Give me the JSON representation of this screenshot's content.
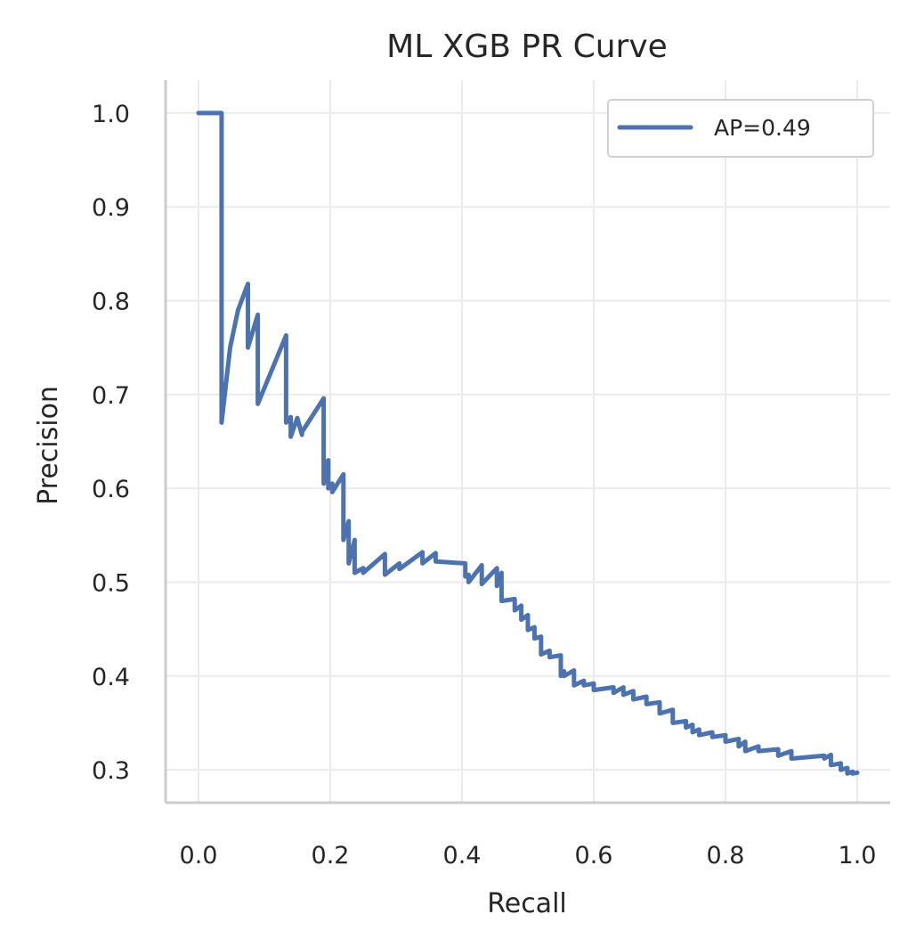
{
  "chart_data": {
    "type": "line",
    "title": "ML XGB PR Curve",
    "xlabel": "Recall",
    "ylabel": "Precision",
    "xlim": [
      -0.05,
      1.05
    ],
    "ylim": [
      0.265,
      1.035
    ],
    "xticks": [
      0.0,
      0.2,
      0.4,
      0.6,
      0.8,
      1.0
    ],
    "xtick_labels": [
      "0.0",
      "0.2",
      "0.4",
      "0.6",
      "0.8",
      "1.0"
    ],
    "yticks": [
      0.3,
      0.4,
      0.5,
      0.6,
      0.7,
      0.8,
      0.9,
      1.0
    ],
    "ytick_labels": [
      "0.3",
      "0.4",
      "0.5",
      "0.6",
      "0.7",
      "0.8",
      "0.9",
      "1.0"
    ],
    "grid": true,
    "legend_position": "top-right",
    "colors": {
      "series": "#4c72b0",
      "grid": "#ebebeb",
      "spine": "#cccccc",
      "text": "#262626"
    },
    "series": [
      {
        "name": "AP=0.49",
        "x": [
          0.0,
          0.035,
          0.035,
          0.048,
          0.06,
          0.075,
          0.075,
          0.09,
          0.09,
          0.133,
          0.133,
          0.14,
          0.14,
          0.15,
          0.157,
          0.157,
          0.19,
          0.19,
          0.197,
          0.197,
          0.203,
          0.203,
          0.22,
          0.22,
          0.228,
          0.228,
          0.237,
          0.237,
          0.25,
          0.25,
          0.283,
          0.283,
          0.305,
          0.305,
          0.34,
          0.34,
          0.36,
          0.36,
          0.405,
          0.405,
          0.41,
          0.41,
          0.43,
          0.43,
          0.453,
          0.453,
          0.46,
          0.46,
          0.48,
          0.48,
          0.49,
          0.49,
          0.5,
          0.5,
          0.51,
          0.51,
          0.52,
          0.52,
          0.533,
          0.533,
          0.55,
          0.55,
          0.555,
          0.555,
          0.57,
          0.57,
          0.585,
          0.585,
          0.6,
          0.6,
          0.63,
          0.63,
          0.645,
          0.645,
          0.66,
          0.66,
          0.68,
          0.68,
          0.7,
          0.7,
          0.72,
          0.72,
          0.74,
          0.74,
          0.75,
          0.75,
          0.76,
          0.76,
          0.78,
          0.78,
          0.8,
          0.8,
          0.82,
          0.82,
          0.83,
          0.83,
          0.85,
          0.85,
          0.88,
          0.88,
          0.9,
          0.9,
          0.95,
          0.95,
          0.96,
          0.96,
          0.975,
          0.975,
          0.985,
          0.985,
          0.993,
          0.993,
          1.0
        ],
        "y": [
          1.0,
          1.0,
          0.67,
          0.75,
          0.79,
          0.818,
          0.75,
          0.785,
          0.69,
          0.763,
          0.67,
          0.676,
          0.655,
          0.675,
          0.657,
          0.66,
          0.696,
          0.605,
          0.63,
          0.6,
          0.605,
          0.596,
          0.615,
          0.545,
          0.565,
          0.52,
          0.545,
          0.51,
          0.515,
          0.51,
          0.53,
          0.508,
          0.52,
          0.514,
          0.532,
          0.52,
          0.531,
          0.522,
          0.52,
          0.506,
          0.508,
          0.5,
          0.518,
          0.498,
          0.515,
          0.496,
          0.51,
          0.48,
          0.482,
          0.47,
          0.475,
          0.46,
          0.465,
          0.449,
          0.452,
          0.44,
          0.442,
          0.423,
          0.427,
          0.42,
          0.422,
          0.4,
          0.405,
          0.4,
          0.406,
          0.39,
          0.395,
          0.39,
          0.392,
          0.385,
          0.388,
          0.382,
          0.388,
          0.38,
          0.384,
          0.375,
          0.378,
          0.37,
          0.372,
          0.36,
          0.364,
          0.35,
          0.352,
          0.345,
          0.348,
          0.34,
          0.343,
          0.337,
          0.34,
          0.335,
          0.337,
          0.33,
          0.333,
          0.325,
          0.33,
          0.32,
          0.325,
          0.32,
          0.322,
          0.315,
          0.32,
          0.312,
          0.315,
          0.312,
          0.316,
          0.305,
          0.307,
          0.3,
          0.302,
          0.296,
          0.298,
          0.296,
          0.297
        ]
      }
    ]
  }
}
